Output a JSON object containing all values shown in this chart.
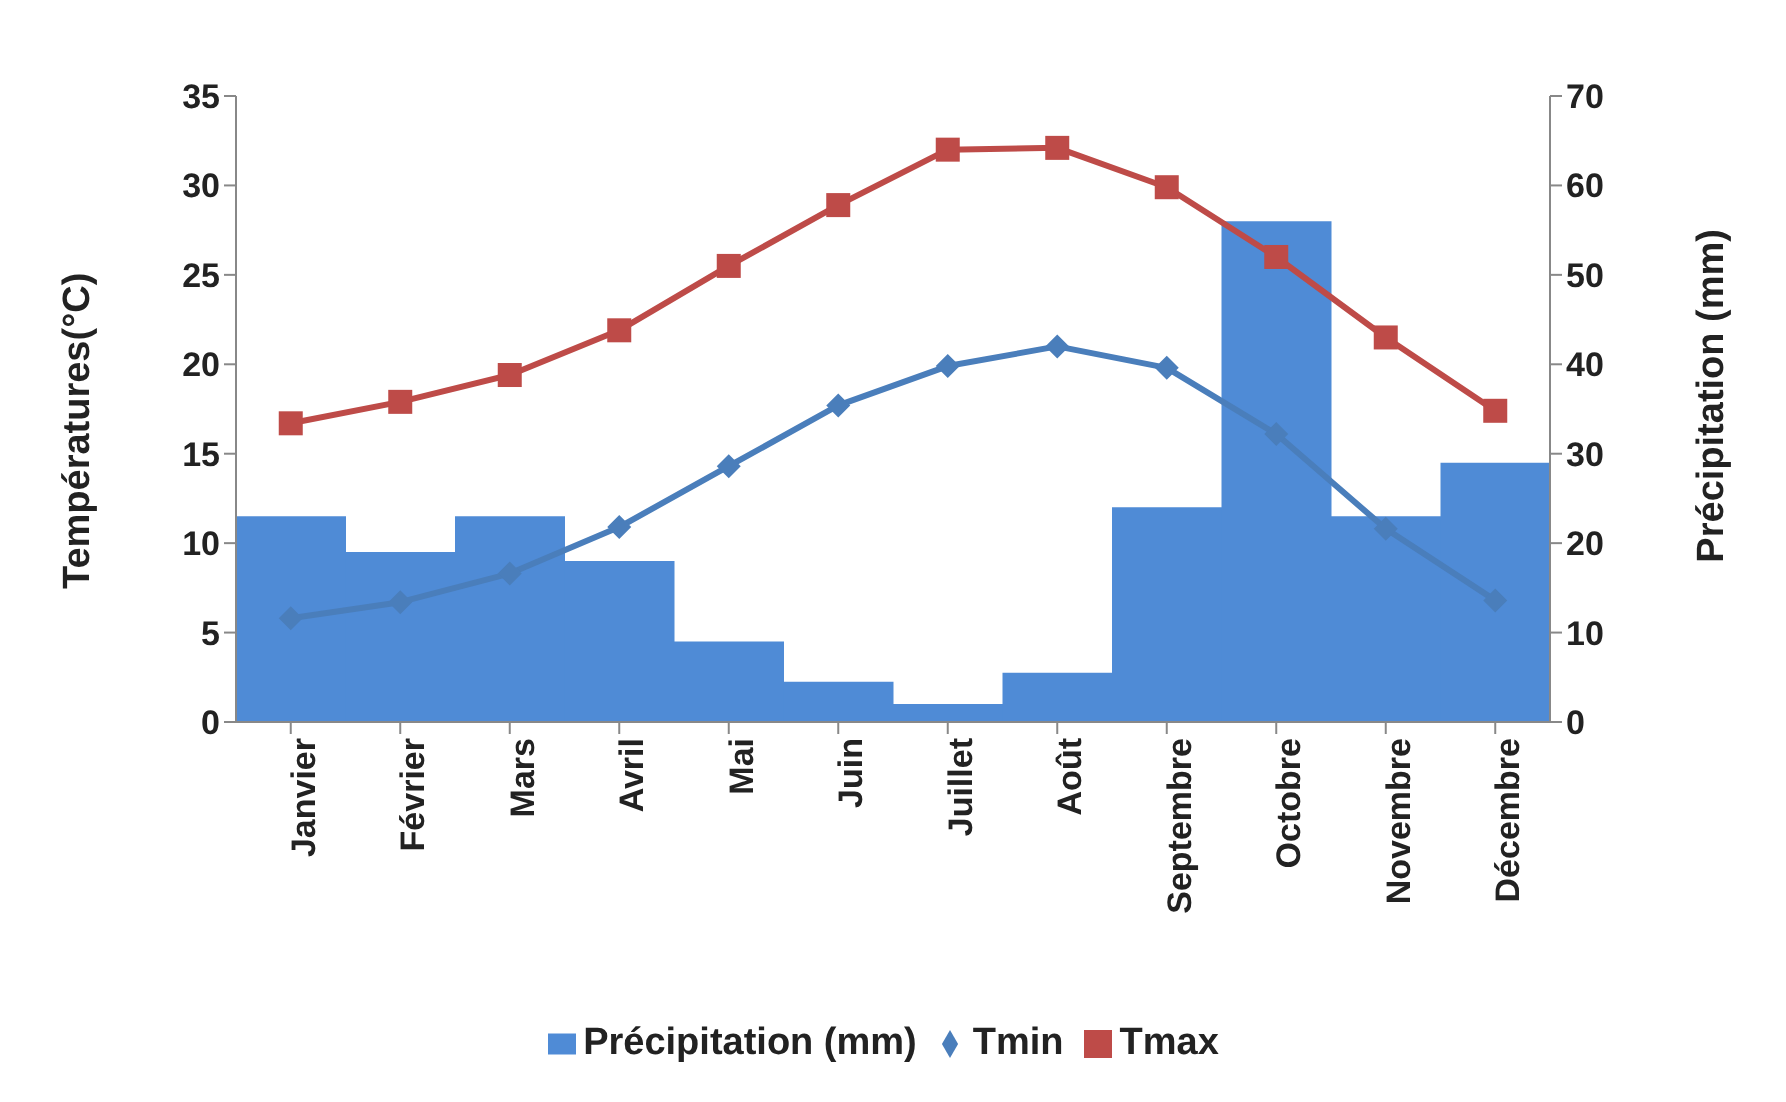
{
  "chart_data": {
    "type": "line",
    "categories": [
      "Janvier",
      "Février",
      "Mars",
      "Avril",
      "Mai",
      "Juin",
      "Juillet",
      "Août",
      "Septembre",
      "Octobre",
      "Novembre",
      "Décembre"
    ],
    "ylabel": "Températures(°C)",
    "y2label": "Précipitation (mm)",
    "ylim": [
      0,
      35
    ],
    "yticks": [
      0,
      5,
      10,
      15,
      20,
      25,
      30,
      35
    ],
    "y2lim": [
      0,
      70
    ],
    "y2ticks": [
      0,
      10,
      20,
      30,
      40,
      50,
      60,
      70
    ],
    "grid": false,
    "legend": "bottom",
    "series": [
      {
        "name": "Précipitation (mm)",
        "type": "bar",
        "axis": "y2",
        "color": "#4f8bd6",
        "values": [
          23,
          19,
          23,
          18,
          9,
          4.5,
          2,
          5.5,
          24,
          56,
          23,
          29
        ]
      },
      {
        "name": "Tmin",
        "marker": "diamond",
        "color": "#4a7ebb",
        "values": [
          5.8,
          6.7,
          8.3,
          10.9,
          14.3,
          17.7,
          19.9,
          21,
          19.8,
          16.1,
          10.8,
          6.8
        ]
      },
      {
        "name": "Tmax",
        "marker": "square",
        "color": "#be4b48",
        "values": [
          16.7,
          17.9,
          19.4,
          21.9,
          25.5,
          28.9,
          32,
          32.1,
          29.9,
          26,
          21.5,
          17.4
        ]
      }
    ]
  }
}
